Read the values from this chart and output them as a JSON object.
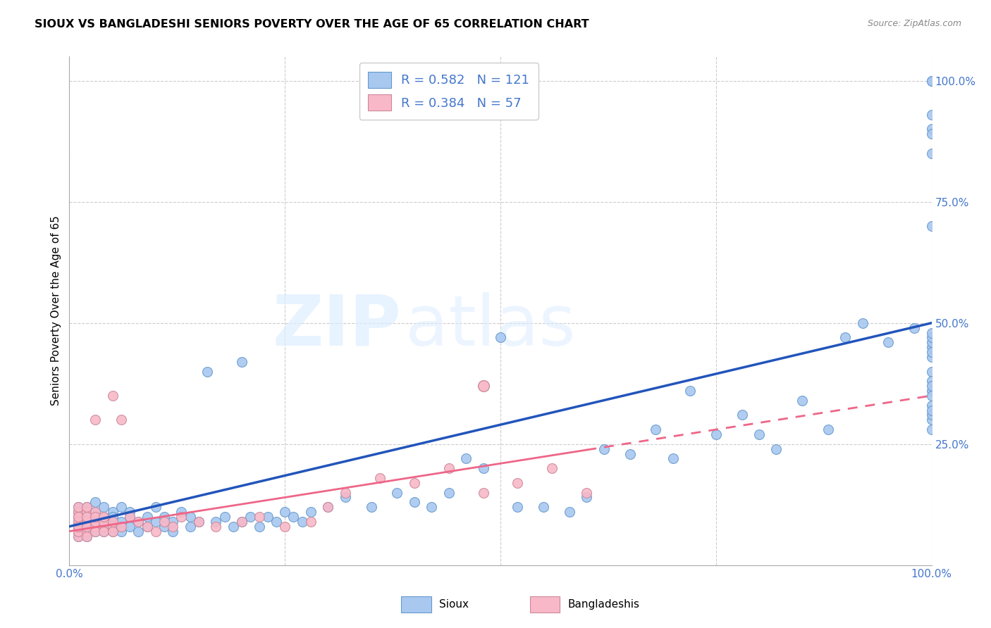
{
  "title": "SIOUX VS BANGLADESHI SENIORS POVERTY OVER THE AGE OF 65 CORRELATION CHART",
  "source": "Source: ZipAtlas.com",
  "ylabel": "Seniors Poverty Over the Age of 65",
  "sioux_color": "#A8C8F0",
  "sioux_edge_color": "#6699CC",
  "bangladeshi_color": "#F8B8C8",
  "bangladeshi_edge_color": "#CC8899",
  "sioux_line_color": "#2255BB",
  "bangladeshi_line_color": "#EE6688",
  "sioux_R": 0.582,
  "sioux_N": 121,
  "bangladeshi_R": 0.384,
  "bangladeshi_N": 57,
  "tick_color": "#4477CC",
  "grid_color": "#CCCCCC",
  "xlim": [
    0,
    100
  ],
  "ylim": [
    0,
    105
  ],
  "sioux_x": [
    1,
    1,
    1,
    1,
    1,
    1,
    1,
    1,
    1,
    2,
    2,
    2,
    2,
    2,
    2,
    2,
    2,
    3,
    3,
    3,
    3,
    3,
    3,
    3,
    4,
    4,
    4,
    4,
    4,
    5,
    5,
    5,
    5,
    5,
    6,
    6,
    6,
    6,
    7,
    7,
    7,
    8,
    8,
    9,
    9,
    10,
    10,
    11,
    11,
    12,
    12,
    13,
    14,
    14,
    15,
    16,
    17,
    18,
    19,
    20,
    20,
    21,
    22,
    23,
    24,
    25,
    26,
    27,
    28,
    30,
    32,
    35,
    38,
    40,
    42,
    44,
    46,
    48,
    50,
    52,
    55,
    58,
    60,
    62,
    65,
    68,
    70,
    72,
    75,
    78,
    80,
    82,
    85,
    88,
    90,
    92,
    95,
    98,
    100,
    100,
    100,
    100,
    100,
    100,
    100,
    100,
    100,
    100,
    100,
    100,
    100,
    100,
    100,
    100,
    100,
    100,
    100,
    100,
    100,
    100,
    100
  ],
  "sioux_y": [
    8,
    10,
    12,
    7,
    9,
    6,
    11,
    8,
    10,
    7,
    9,
    11,
    8,
    6,
    10,
    12,
    9,
    8,
    10,
    7,
    9,
    11,
    13,
    8,
    10,
    7,
    9,
    12,
    8,
    9,
    7,
    11,
    8,
    10,
    8,
    12,
    9,
    7,
    10,
    8,
    11,
    9,
    7,
    8,
    10,
    12,
    9,
    8,
    10,
    9,
    7,
    11,
    10,
    8,
    9,
    40,
    9,
    10,
    8,
    9,
    42,
    10,
    8,
    10,
    9,
    11,
    10,
    9,
    11,
    12,
    14,
    12,
    15,
    13,
    12,
    15,
    22,
    20,
    47,
    12,
    12,
    11,
    14,
    24,
    23,
    28,
    22,
    36,
    27,
    31,
    27,
    24,
    34,
    28,
    47,
    50,
    46,
    49,
    100,
    100,
    93,
    90,
    85,
    89,
    70,
    45,
    46,
    47,
    48,
    40,
    43,
    44,
    38,
    36,
    37,
    30,
    31,
    33,
    32,
    35,
    28
  ],
  "bangladeshi_x": [
    1,
    1,
    1,
    1,
    1,
    1,
    1,
    1,
    1,
    1,
    1,
    1,
    2,
    2,
    2,
    2,
    2,
    2,
    2,
    3,
    3,
    3,
    3,
    3,
    3,
    4,
    4,
    4,
    4,
    5,
    5,
    5,
    5,
    6,
    6,
    7,
    8,
    9,
    10,
    11,
    12,
    13,
    15,
    17,
    20,
    22,
    25,
    28,
    30,
    32,
    36,
    40,
    44,
    48,
    52,
    56,
    60
  ],
  "bangladeshi_y": [
    7,
    8,
    9,
    10,
    6,
    11,
    12,
    8,
    7,
    9,
    10,
    8,
    7,
    9,
    11,
    8,
    6,
    10,
    12,
    8,
    7,
    9,
    11,
    10,
    30,
    8,
    7,
    9,
    10,
    8,
    9,
    35,
    7,
    8,
    30,
    10,
    9,
    8,
    7,
    9,
    8,
    10,
    9,
    8,
    9,
    10,
    8,
    9,
    12,
    15,
    18,
    17,
    20,
    15,
    17,
    20,
    15
  ],
  "bangladeshi_outlier_x": 48,
  "bangladeshi_outlier_y": 37,
  "bangla_solid_end": 60,
  "sioux_line_x0": 0,
  "sioux_line_y0": 8,
  "sioux_line_x1": 100,
  "sioux_line_y1": 50,
  "bangla_line_x0": 0,
  "bangla_line_y0": 7,
  "bangla_line_x1": 100,
  "bangla_line_y1": 35
}
